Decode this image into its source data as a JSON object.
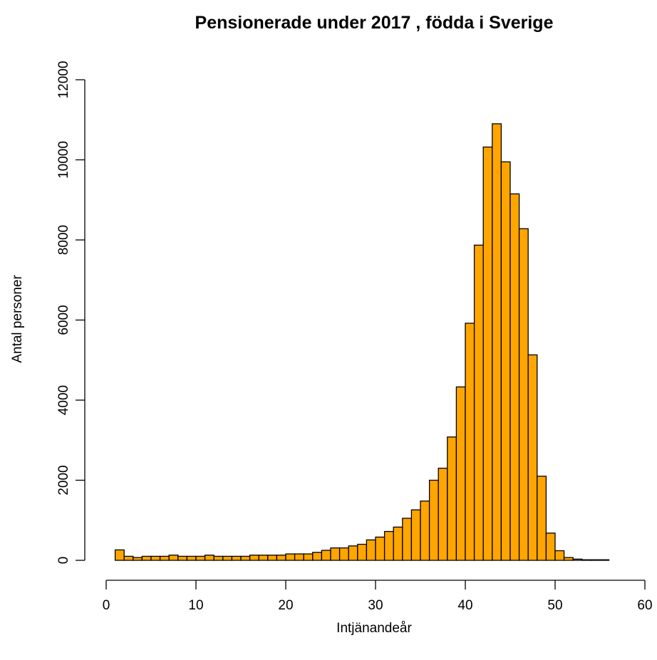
{
  "chart_data": {
    "type": "bar",
    "title": "Pensionerade under 2017 , födda i Sverige",
    "xlabel": "Intjänandeår",
    "ylabel": "Antal personer",
    "xlim": [
      0,
      60
    ],
    "ylim": [
      0,
      12000
    ],
    "xticks": [
      0,
      10,
      20,
      30,
      40,
      50,
      60
    ],
    "yticks": [
      0,
      2000,
      4000,
      6000,
      8000,
      10000,
      12000
    ],
    "xtick_labels": [
      "0",
      "10",
      "20",
      "30",
      "40",
      "50",
      "60"
    ],
    "ytick_labels": [
      "0",
      "2000",
      "4000",
      "6000",
      "8000",
      "10000",
      "12000"
    ],
    "bin_start": 1,
    "bin_width": 1,
    "bins": [
      "1-2",
      "2-3",
      "3-4",
      "4-5",
      "5-6",
      "6-7",
      "7-8",
      "8-9",
      "9-10",
      "10-11",
      "11-12",
      "12-13",
      "13-14",
      "14-15",
      "15-16",
      "16-17",
      "17-18",
      "18-19",
      "19-20",
      "20-21",
      "21-22",
      "22-23",
      "23-24",
      "24-25",
      "25-26",
      "26-27",
      "27-28",
      "28-29",
      "29-30",
      "30-31",
      "31-32",
      "32-33",
      "33-34",
      "34-35",
      "35-36",
      "36-37",
      "37-38",
      "38-39",
      "39-40",
      "40-41",
      "41-42",
      "42-43",
      "43-44",
      "44-45",
      "45-46",
      "46-47",
      "47-48",
      "48-49",
      "49-50",
      "50-51",
      "51-52",
      "52-53",
      "53-54",
      "54-55",
      "55-56"
    ],
    "values": [
      260,
      100,
      70,
      100,
      100,
      100,
      130,
      100,
      100,
      100,
      130,
      100,
      100,
      100,
      100,
      130,
      130,
      130,
      130,
      160,
      160,
      160,
      200,
      250,
      310,
      310,
      360,
      400,
      510,
      580,
      720,
      830,
      1050,
      1260,
      1480,
      2000,
      2300,
      3080,
      4330,
      5920,
      7870,
      10320,
      10900,
      9950,
      9150,
      8280,
      5130,
      2100,
      680,
      240,
      70,
      30,
      10,
      5,
      5
    ],
    "bar_color": "#FFA500",
    "border_color": "#000000",
    "grid": false,
    "legend": "none"
  }
}
